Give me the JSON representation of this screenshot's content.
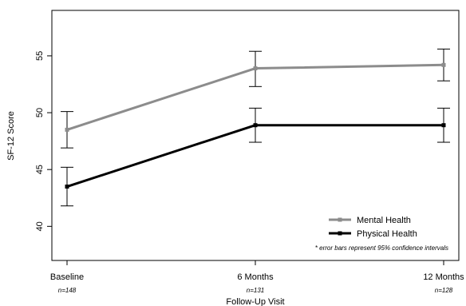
{
  "chart_data": {
    "type": "line",
    "xlabel": "Follow-Up Visit",
    "ylabel": "SF-12 Score",
    "categories": [
      "Baseline",
      "6 Months",
      "12 Months"
    ],
    "category_notes": [
      "n=148",
      "n=131",
      "n=128"
    ],
    "ylim": [
      37,
      59
    ],
    "yticks": [
      40,
      45,
      50,
      55
    ],
    "grid": false,
    "legend_position": "bottom-right",
    "series": [
      {
        "name": "Mental Health",
        "color": "#8c8c8c",
        "values": [
          48.5,
          53.9,
          54.2
        ],
        "ci_lower": [
          46.9,
          52.3,
          52.8
        ],
        "ci_upper": [
          50.1,
          55.4,
          55.6
        ]
      },
      {
        "name": "Physical Health",
        "color": "#000000",
        "values": [
          43.5,
          48.9,
          48.9
        ],
        "ci_lower": [
          41.8,
          47.4,
          47.4
        ],
        "ci_upper": [
          45.2,
          50.4,
          50.4
        ]
      }
    ],
    "note": "* error bars represent 95% confidence intervals"
  }
}
